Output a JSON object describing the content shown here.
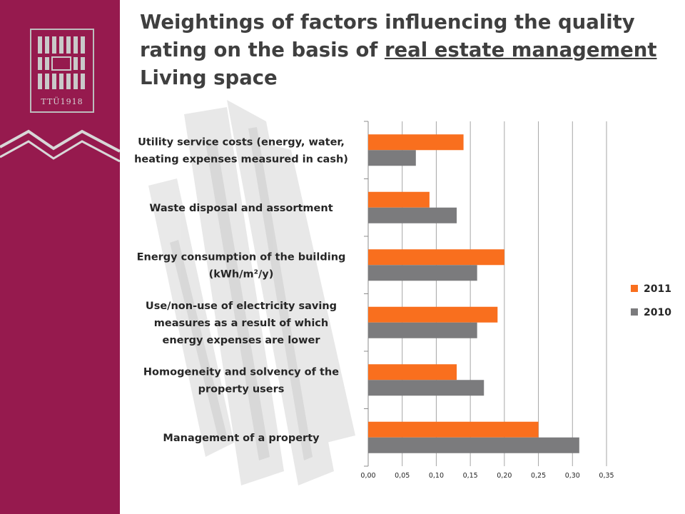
{
  "slide": {
    "title_line1": "Weightings of factors influencing the quality",
    "title_line2_plain": "rating on the basis of ",
    "title_line2_underlined": "real estate management",
    "title_line3": "Living space",
    "logo_text": "TTÜ1918",
    "sidebar_color": "#961a4e"
  },
  "chart_data": {
    "type": "bar",
    "orientation": "horizontal",
    "title": "",
    "xlabel": "",
    "ylabel": "",
    "xlim": [
      0,
      0.35
    ],
    "x_ticks": [
      "0,00",
      "0,05",
      "0,10",
      "0,15",
      "0,20",
      "0,25",
      "0,30",
      "0,35"
    ],
    "grid": true,
    "legend_position": "right",
    "categories": [
      [
        "Utility service costs (energy, water,",
        "heating expenses measured in cash)"
      ],
      [
        "Waste disposal and assortment"
      ],
      [
        "Energy consumption of the building",
        "(kWh/m²/y)"
      ],
      [
        "Use/non-use of electricity saving",
        "measures as a result of which",
        "energy expenses are lower"
      ],
      [
        "Homogeneity and solvency of the",
        "property users"
      ],
      [
        "Management of a property"
      ]
    ],
    "series": [
      {
        "name": "2011",
        "color": "#f96f1e",
        "values": [
          0.14,
          0.09,
          0.2,
          0.19,
          0.13,
          0.25
        ]
      },
      {
        "name": "2010",
        "color": "#7b7b7d",
        "values": [
          0.07,
          0.13,
          0.16,
          0.16,
          0.17,
          0.31
        ]
      }
    ]
  }
}
